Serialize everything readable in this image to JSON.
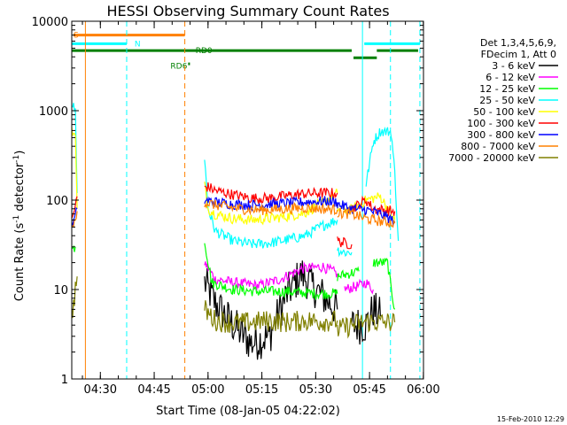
{
  "chart_data": {
    "type": "line",
    "title": "HESSI Observing Summary Count Rates",
    "xlabel": "Start Time (08-Jan-05 04:22:02)",
    "ylabel_main": "Count Rate (s",
    "ylabel_sup1": "-1",
    "ylabel_mid": " detector",
    "ylabel_sup2": "-1",
    "ylabel_end": ")",
    "xlim_minutes": [
      0,
      98
    ],
    "ylim": [
      1,
      10000
    ],
    "yscale": "log",
    "x_ticks": [
      {
        "label": "04:30",
        "min": 7.97
      },
      {
        "label": "04:45",
        "min": 22.97
      },
      {
        "label": "05:00",
        "min": 37.97
      },
      {
        "label": "05:15",
        "min": 52.97
      },
      {
        "label": "05:30",
        "min": 67.97
      },
      {
        "label": "05:45",
        "min": 82.97
      },
      {
        "label": "06:00",
        "min": 97.97
      }
    ],
    "y_ticks": [
      {
        "label": "1",
        "value": 1
      },
      {
        "label": "10",
        "value": 10
      },
      {
        "label": "100",
        "value": 100
      },
      {
        "label": "1000",
        "value": 1000
      },
      {
        "label": "10000",
        "value": 10000
      }
    ],
    "legend_header": [
      "Det 1,3,4,5,6,9,",
      "FDecim 1, Att 0"
    ],
    "series": [
      {
        "name": "3 - 6 keV",
        "color": "#000000",
        "segments": [
          [
            [
              37,
              12
            ],
            [
              40,
              7
            ],
            [
              45,
              4
            ],
            [
              50,
              2.5
            ],
            [
              55,
              3
            ],
            [
              60,
              9
            ],
            [
              64,
              15
            ],
            [
              68,
              10
            ],
            [
              72,
              7
            ],
            [
              74,
              6
            ]
          ],
          [
            [
              78,
              4
            ],
            [
              82,
              4
            ],
            [
              84,
              6
            ],
            [
              86,
              5
            ]
          ]
        ]
      },
      {
        "name": "6 - 12 keV",
        "color": "#ff00ff",
        "segments": [
          [
            [
              37,
              20
            ],
            [
              40,
              13
            ],
            [
              45,
              12
            ],
            [
              52,
              11
            ],
            [
              58,
              13
            ],
            [
              64,
              17
            ],
            [
              70,
              18
            ],
            [
              74,
              15
            ]
          ],
          [
            [
              76,
              10
            ],
            [
              80,
              11
            ],
            [
              82,
              12
            ],
            [
              84,
              10
            ]
          ]
        ]
      },
      {
        "name": "12 - 25 keV",
        "color": "#00ff00",
        "segments": [
          [
            [
              0,
              28
            ],
            [
              1,
              30
            ]
          ],
          [
            [
              37,
              35
            ],
            [
              39,
              12
            ],
            [
              45,
              10
            ],
            [
              52,
              9.5
            ],
            [
              60,
              9.5
            ],
            [
              68,
              9
            ],
            [
              74,
              9
            ]
          ],
          [
            [
              74,
              14
            ],
            [
              77,
              15
            ],
            [
              80,
              16
            ]
          ],
          [
            [
              84,
              20
            ],
            [
              88,
              20
            ],
            [
              89,
              10
            ],
            [
              90,
              6
            ]
          ]
        ]
      },
      {
        "name": "25 - 50 keV",
        "color": "#00ffff",
        "segments": [
          [
            [
              0,
              1200
            ],
            [
              1,
              1000
            ],
            [
              1.5,
              120
            ]
          ],
          [
            [
              37,
              300
            ],
            [
              38,
              80
            ],
            [
              40,
              45
            ],
            [
              45,
              35
            ],
            [
              50,
              32
            ],
            [
              55,
              33
            ],
            [
              60,
              36
            ],
            [
              65,
              40
            ],
            [
              70,
              52
            ],
            [
              74,
              60
            ]
          ],
          [
            [
              74,
              28
            ],
            [
              76,
              26
            ],
            [
              78,
              26
            ]
          ],
          [
            [
              82,
              150
            ],
            [
              84,
              450
            ],
            [
              86,
              590
            ],
            [
              89,
              580
            ],
            [
              90,
              200
            ],
            [
              91,
              35
            ]
          ]
        ]
      },
      {
        "name": "50 - 100 keV",
        "color": "#ffff00",
        "segments": [
          [
            [
              0,
              600
            ],
            [
              1,
              500
            ],
            [
              1.5,
              80
            ]
          ],
          [
            [
              37,
              150
            ],
            [
              38,
              80
            ],
            [
              40,
              70
            ],
            [
              45,
              62
            ],
            [
              50,
              60
            ],
            [
              55,
              62
            ],
            [
              60,
              66
            ],
            [
              65,
              72
            ],
            [
              70,
              95
            ],
            [
              74,
              120
            ]
          ],
          [
            [
              74,
              80
            ],
            [
              78,
              78
            ],
            [
              82,
              100
            ],
            [
              86,
              110
            ],
            [
              90,
              60
            ]
          ]
        ]
      },
      {
        "name": "100 - 300 keV",
        "color": "#ff0000",
        "segments": [
          [
            [
              0,
              60
            ],
            [
              1,
              85
            ],
            [
              1.5,
              110
            ]
          ],
          [
            [
              37,
              140
            ],
            [
              38,
              140
            ],
            [
              40,
              128
            ],
            [
              45,
              115
            ],
            [
              50,
              105
            ],
            [
              55,
              105
            ],
            [
              60,
              112
            ],
            [
              65,
              118
            ],
            [
              70,
              120
            ],
            [
              74,
              120
            ]
          ],
          [
            [
              74,
              35
            ],
            [
              76,
              33
            ],
            [
              78,
              32
            ]
          ],
          [
            [
              78,
              80
            ],
            [
              82,
              100
            ],
            [
              84,
              80
            ],
            [
              86,
              78
            ],
            [
              90,
              75
            ]
          ]
        ]
      },
      {
        "name": "300 - 800 keV",
        "color": "#0000ff",
        "segments": [
          [
            [
              0,
              50
            ],
            [
              1,
              65
            ],
            [
              1.5,
              80
            ]
          ],
          [
            [
              37,
              100
            ],
            [
              40,
              95
            ],
            [
              45,
              90
            ],
            [
              50,
              88
            ],
            [
              55,
              90
            ],
            [
              60,
              92
            ],
            [
              65,
              95
            ],
            [
              70,
              97
            ],
            [
              74,
              95
            ]
          ],
          [
            [
              74,
              90
            ],
            [
              78,
              80
            ],
            [
              82,
              78
            ],
            [
              86,
              70
            ],
            [
              90,
              58
            ]
          ]
        ]
      },
      {
        "name": "800 - 7000 keV",
        "color": "#ff8000",
        "segments": [
          [
            [
              0,
              45
            ],
            [
              1,
              60
            ],
            [
              1.5,
              75
            ]
          ],
          [
            [
              37,
              95
            ],
            [
              40,
              88
            ],
            [
              45,
              82
            ],
            [
              50,
              78
            ],
            [
              55,
              78
            ],
            [
              60,
              80
            ],
            [
              65,
              82
            ],
            [
              70,
              80
            ],
            [
              74,
              78
            ]
          ],
          [
            [
              74,
              72
            ],
            [
              78,
              70
            ],
            [
              82,
              62
            ],
            [
              86,
              58
            ],
            [
              90,
              55
            ]
          ]
        ]
      },
      {
        "name": "7000 - 20000 keV",
        "color": "#808000",
        "segments": [
          [
            [
              0,
              5
            ],
            [
              1,
              10
            ],
            [
              1.5,
              14
            ]
          ],
          [
            [
              37,
              6
            ],
            [
              40,
              4.5
            ],
            [
              45,
              4.2
            ],
            [
              50,
              4.3
            ],
            [
              55,
              4.5
            ],
            [
              60,
              4.3
            ],
            [
              65,
              4.5
            ],
            [
              70,
              4.4
            ],
            [
              74,
              4.5
            ]
          ],
          [
            [
              74,
              3.5
            ],
            [
              78,
              4
            ],
            [
              82,
              4.4
            ],
            [
              86,
              4.3
            ],
            [
              90,
              4.3
            ]
          ]
        ]
      }
    ],
    "vertical_lines": [
      {
        "min": 3.8,
        "color": "#ff8000",
        "style": "solid"
      },
      {
        "min": 15.3,
        "color": "#00ffff",
        "style": "dashed"
      },
      {
        "min": 31.5,
        "color": "#ff8000",
        "style": "dashed"
      },
      {
        "min": 81.0,
        "color": "#00ffff",
        "style": "solid"
      },
      {
        "min": 88.8,
        "color": "#00ffff",
        "style": "dashed"
      },
      {
        "min": 97.0,
        "color": "#00ffff",
        "style": "dashed"
      }
    ],
    "flag_bars": [
      {
        "label": "S",
        "color": "#ff8000",
        "y": 7000,
        "x0": 0.5,
        "x1": 31.5,
        "label_min": 0.5
      },
      {
        "label": "N",
        "color": "#00ffff",
        "y": 5600,
        "x0": 0,
        "x1": 15.3,
        "label_min": 17.5
      },
      {
        "label": "",
        "color": "#00ffff",
        "y": 5600,
        "x0": 81.5,
        "x1": 97,
        "label_min": 0
      },
      {
        "label": "RD0",
        "color": "#007f00",
        "y": 4700,
        "x0": 0,
        "x1": 78,
        "label_min": 34.5
      },
      {
        "label": "",
        "color": "#007f00",
        "y": 4700,
        "x0": 85,
        "x1": 96.5,
        "label_min": 0
      },
      {
        "label": "",
        "color": "#007f00",
        "y": 3900,
        "x0": 78.5,
        "x1": 85,
        "label_min": 0
      }
    ],
    "flag_labels_extra": [
      {
        "label": "RD6",
        "color": "#007f00",
        "y": 3700,
        "min": 27.5
      }
    ],
    "footer_stamp": "15-Feb-2010 12:29"
  }
}
